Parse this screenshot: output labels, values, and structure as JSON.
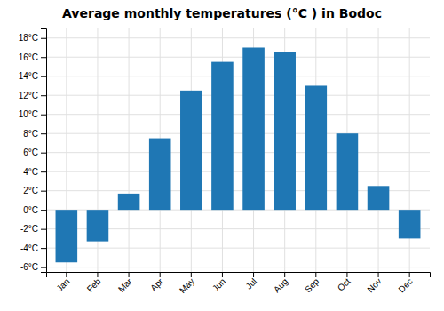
{
  "chart_data": {
    "type": "bar",
    "title": "Average monthly temperatures (°C ) in Bodoc",
    "categories": [
      "Jan",
      "Feb",
      "Mar",
      "Apr",
      "May",
      "Jun",
      "Jul",
      "Aug",
      "Sep",
      "Oct",
      "Nov",
      "Dec"
    ],
    "values": [
      -5.5,
      -3.3,
      1.7,
      7.5,
      12.5,
      15.5,
      17.0,
      16.5,
      13.0,
      8.0,
      2.5,
      -3.0
    ],
    "ylim": [
      -6.5,
      19
    ],
    "yticks": [
      {
        "value": -6,
        "label": "-6°C"
      },
      {
        "value": -4,
        "label": "-4°C"
      },
      {
        "value": -2,
        "label": "-2°C"
      },
      {
        "value": 0,
        "label": "0°C"
      },
      {
        "value": 2,
        "label": "2°C"
      },
      {
        "value": 4,
        "label": "4°C"
      },
      {
        "value": 6,
        "label": "6°C"
      },
      {
        "value": 8,
        "label": "8°C"
      },
      {
        "value": 10,
        "label": "10°C"
      },
      {
        "value": 12,
        "label": "12°C"
      },
      {
        "value": 14,
        "label": "14°C"
      },
      {
        "value": 16,
        "label": "16°C"
      },
      {
        "value": 18,
        "label": "18°C"
      }
    ],
    "grid": true
  }
}
